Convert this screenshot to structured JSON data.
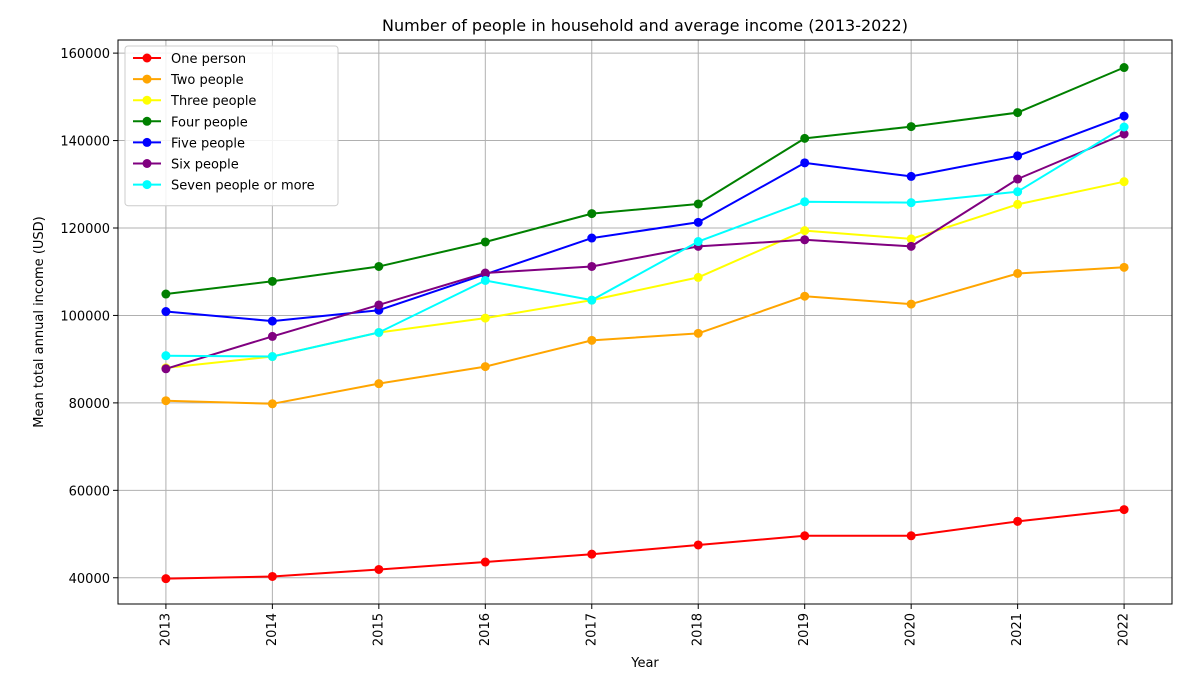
{
  "chart_data": {
    "type": "line",
    "title": "Number of people in household and average income (2013-2022)",
    "xlabel": "Year",
    "ylabel": "Mean total annual income (USD)",
    "x": [
      "2013",
      "2014",
      "2015",
      "2016",
      "2017",
      "2018",
      "2019",
      "2020",
      "2021",
      "2022"
    ],
    "xlim": [
      2012.55,
      2022.45
    ],
    "ylim": [
      34000,
      163000
    ],
    "yticks": [
      "40000",
      "60000",
      "80000",
      "100000",
      "120000",
      "140000",
      "160000"
    ],
    "grid": true,
    "legend_position": "top-left",
    "series": [
      {
        "name": "One person",
        "color": "#ff0000",
        "values": [
          39800,
          40300,
          41900,
          43600,
          45400,
          47500,
          49600,
          49600,
          52900,
          55600
        ]
      },
      {
        "name": "Two people",
        "color": "#ffa500",
        "values": [
          80500,
          79800,
          84400,
          88300,
          94300,
          95900,
          104400,
          102600,
          109600,
          111000
        ]
      },
      {
        "name": "Three people",
        "color": "#ffff00",
        "values": [
          88000,
          90600,
          96100,
          99400,
          103500,
          108700,
          119400,
          117500,
          125400,
          130600
        ]
      },
      {
        "name": "Four people",
        "color": "#008000",
        "values": [
          104900,
          107800,
          111200,
          116800,
          123300,
          125500,
          140500,
          143200,
          146400,
          156700
        ]
      },
      {
        "name": "Five people",
        "color": "#0000ff",
        "values": [
          100900,
          98700,
          101200,
          109400,
          117700,
          121300,
          134900,
          131800,
          136500,
          145600
        ]
      },
      {
        "name": "Six people",
        "color": "#800080",
        "values": [
          87800,
          95200,
          102400,
          109700,
          111200,
          115800,
          117300,
          115800,
          131200,
          141500
        ]
      },
      {
        "name": "Seven people or more",
        "color": "#00ffff",
        "values": [
          90800,
          90600,
          96100,
          108000,
          103500,
          116900,
          126000,
          125800,
          128300,
          143100
        ]
      }
    ]
  }
}
